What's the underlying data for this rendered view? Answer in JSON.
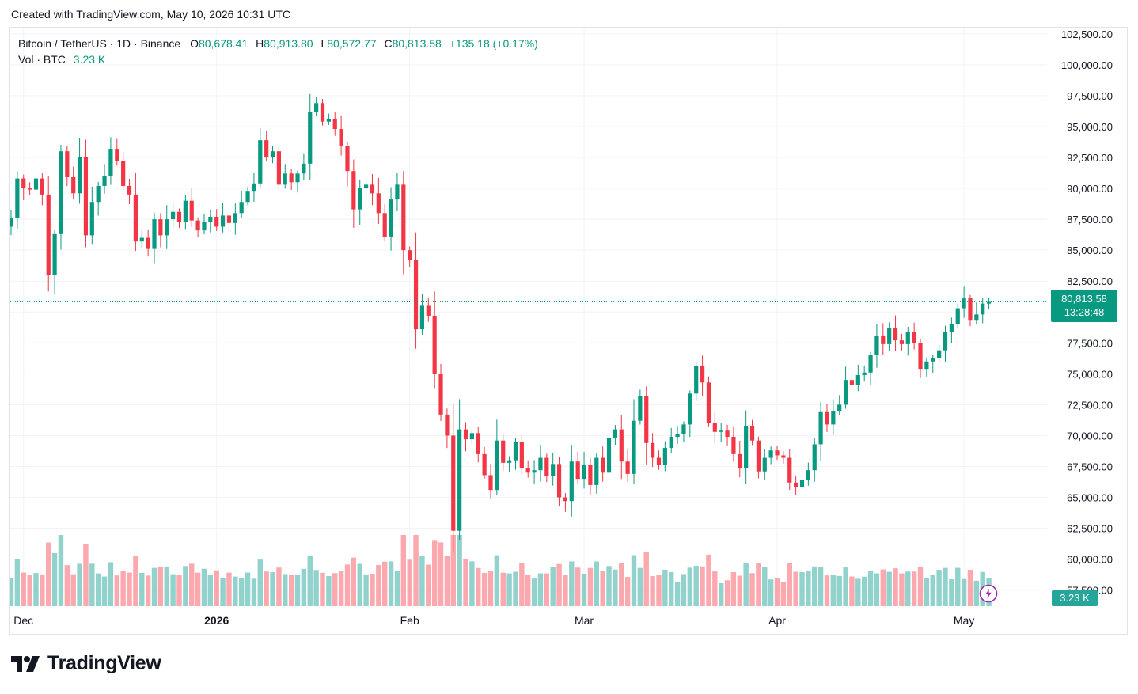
{
  "header": {
    "caption": "Created with TradingView.com, May 10, 2026 10:31 UTC"
  },
  "legend": {
    "symbol": "Bitcoin / TetherUS · 1D · Binance",
    "open_label": "O",
    "open": "80,678.41",
    "high_label": "H",
    "high": "80,913.80",
    "low_label": "L",
    "low": "80,572.77",
    "close_label": "C",
    "close": "80,813.58",
    "change": "+135.18 (+0.17%)",
    "vol_label": "Vol · BTC",
    "vol_value": "3.23 K"
  },
  "last_price": {
    "price": "80,813.58",
    "countdown": "13:28:48"
  },
  "volume_badge": "3.23 K",
  "brand": {
    "name": "TradingView"
  },
  "icons": {
    "logo": "tradingview-logo-icon",
    "flash": "lightning-icon"
  },
  "colors": {
    "up": "#089981",
    "down": "#f23645",
    "up_vol": "#26a69a",
    "down_vol": "#f7525f",
    "grid": "#f0f3fa"
  },
  "chart_data": {
    "type": "candlestick",
    "symbol": "BTCUSDT",
    "interval": "1D",
    "y_tick_labels": [
      "57,500.00",
      "60,000.00",
      "62,500.00",
      "65,000.00",
      "67,500.00",
      "70,000.00",
      "72,500.00",
      "75,000.00",
      "77,500.00",
      "80,000.00",
      "82,500.00",
      "85,000.00",
      "87,500.00",
      "90,000.00",
      "92,500.00",
      "95,000.00",
      "97,500.00",
      "100,000.00",
      "102,500.00"
    ],
    "x_tick_labels": [
      {
        "label": "Dec",
        "index": 2,
        "bold": false
      },
      {
        "label": "2026",
        "index": 33,
        "bold": true
      },
      {
        "label": "Feb",
        "index": 64,
        "bold": false
      },
      {
        "label": "Mar",
        "index": 92,
        "bold": false
      },
      {
        "label": "Apr",
        "index": 123,
        "bold": false
      },
      {
        "label": "May",
        "index": 153,
        "bold": false
      }
    ],
    "ylim": [
      56200,
      103000
    ],
    "last_close": 80813.58,
    "closes": [
      87600,
      90800,
      90000,
      89900,
      90800,
      89500,
      83000,
      86300,
      93000,
      90900,
      89600,
      92500,
      86200,
      88900,
      90200,
      91000,
      93200,
      92200,
      90200,
      89500,
      85700,
      86000,
      85100,
      87500,
      86200,
      87500,
      88100,
      87300,
      89000,
      87400,
      86600,
      87300,
      87700,
      86900,
      87800,
      87200,
      88000,
      88900,
      89800,
      90400,
      93900,
      92500,
      93000,
      90300,
      91200,
      90500,
      91200,
      92000,
      96200,
      96900,
      95400,
      95600,
      94800,
      93400,
      91400,
      88300,
      90000,
      90300,
      89600,
      88000,
      86100,
      89100,
      90300,
      85000,
      84200,
      78600,
      80500,
      79700,
      75000,
      71700,
      70000,
      62300,
      70500,
      69700,
      70200,
      68500,
      66800,
      65600,
      69600,
      67800,
      68000,
      69500,
      67400,
      67000,
      67200,
      68200,
      66700,
      67700,
      65000,
      64700,
      67900,
      66500,
      67600,
      66000,
      68200,
      67000,
      69800,
      70500,
      67900,
      66900,
      71200,
      73200,
      69400,
      68200,
      67600,
      69000,
      69900,
      70100,
      70900,
      73400,
      75600,
      74300,
      71000,
      70300,
      70400,
      69900,
      68500,
      67400,
      70800,
      69600,
      67100,
      68200,
      68800,
      68400,
      68200,
      66200,
      65800,
      66400,
      67200,
      69300,
      71900,
      70900,
      72000,
      72500,
      74500,
      74100,
      74900,
      75100,
      76500,
      78100,
      77400,
      78700,
      77700,
      77400,
      78400,
      77500,
      75400,
      76000,
      76300,
      76900,
      78400,
      79000,
      80300,
      81100,
      79300,
      79800,
      80678,
      80814
    ],
    "volume_label": "Vol · BTC"
  }
}
